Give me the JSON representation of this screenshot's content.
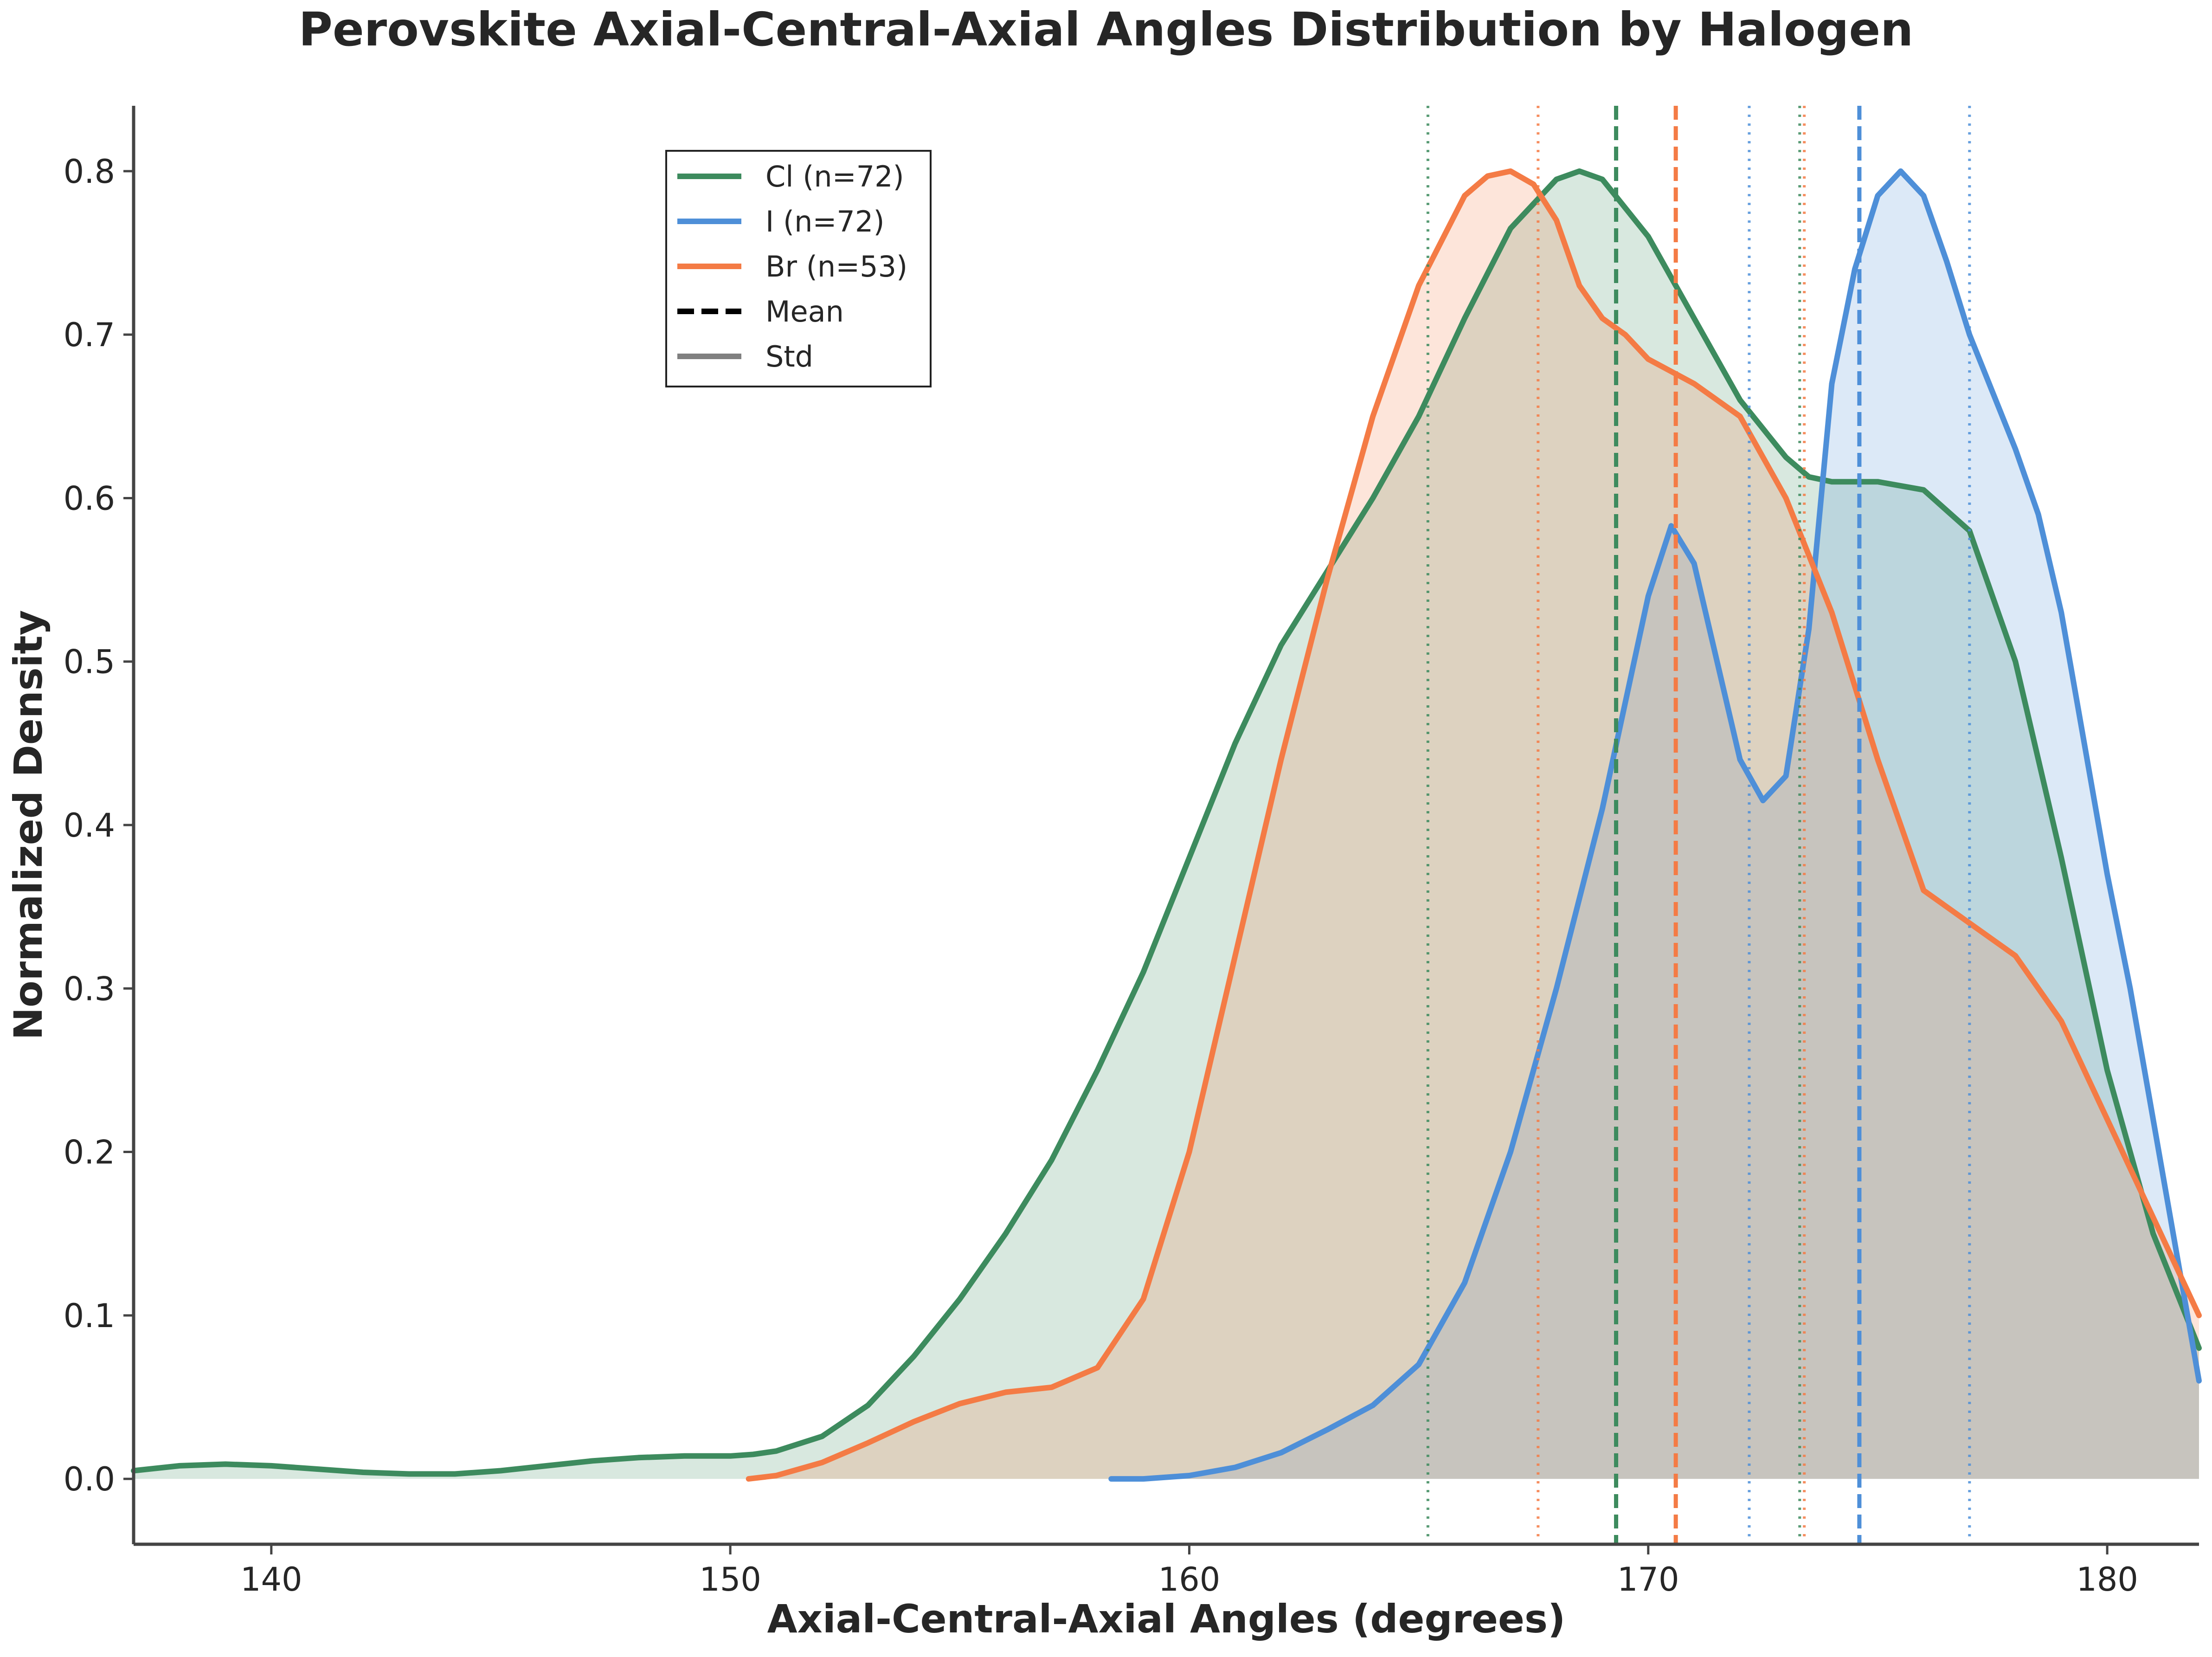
{
  "chart_data": {
    "type": "area",
    "title": "Perovskite Axial-Central-Axial Angles Distribution by Halogen",
    "xlabel": "Axial-Central-Axial Angles (degrees)",
    "ylabel": "Normalized Density",
    "xlim": [
      137,
      182
    ],
    "ylim": [
      -0.04,
      0.84
    ],
    "xticks": [
      140,
      150,
      160,
      170,
      180
    ],
    "xtick_labels": [
      "140",
      "150",
      "160",
      "170",
      "180"
    ],
    "yticks": [
      0.0,
      0.1,
      0.2,
      0.3,
      0.4,
      0.5,
      0.6,
      0.7,
      0.8
    ],
    "ytick_labels": [
      "0.0",
      "0.1",
      "0.2",
      "0.3",
      "0.4",
      "0.5",
      "0.6",
      "0.7",
      "0.8"
    ],
    "grid": false,
    "legend_position": "top-left",
    "legend": [
      "Cl (n=72)",
      "I (n=72)",
      "Br (n=53)",
      "Mean",
      "Std"
    ],
    "series": [
      {
        "name": "Cl (n=72)",
        "color": "#3d8b5e",
        "mean": 169.3,
        "std_lines": [
          165.2,
          173.3
        ],
        "x": [
          137,
          138,
          139,
          140,
          141,
          142,
          143,
          144,
          145,
          146,
          147,
          148,
          149,
          150,
          150.5,
          151,
          152,
          153,
          154,
          155,
          156,
          157,
          158,
          159,
          160,
          161,
          162,
          163,
          164,
          165,
          166,
          167,
          168,
          168.5,
          169,
          170,
          171,
          172,
          173,
          173.5,
          174,
          175,
          176,
          177,
          178,
          179,
          180,
          181,
          182
        ],
        "y": [
          0.005,
          0.008,
          0.009,
          0.008,
          0.006,
          0.004,
          0.003,
          0.003,
          0.005,
          0.008,
          0.011,
          0.013,
          0.014,
          0.014,
          0.015,
          0.017,
          0.026,
          0.045,
          0.075,
          0.11,
          0.15,
          0.195,
          0.25,
          0.31,
          0.38,
          0.45,
          0.51,
          0.555,
          0.6,
          0.65,
          0.71,
          0.765,
          0.795,
          0.8,
          0.795,
          0.76,
          0.71,
          0.66,
          0.625,
          0.613,
          0.61,
          0.61,
          0.605,
          0.58,
          0.5,
          0.38,
          0.25,
          0.15,
          0.08
        ]
      },
      {
        "name": "I (n=72)",
        "color": "#4e8fd8",
        "mean": 174.6,
        "std_lines": [
          172.2,
          177.0
        ],
        "x": [
          158.3,
          159,
          160,
          161,
          162,
          163,
          164,
          165,
          166,
          167,
          168,
          169,
          170,
          170.5,
          171,
          171.5,
          172,
          172.5,
          173,
          173.5,
          174,
          174.5,
          175,
          175.5,
          176,
          176.5,
          177,
          177.5,
          178,
          178.5,
          179,
          179.5,
          180,
          180.5,
          181,
          181.5,
          182
        ],
        "y": [
          0.0,
          0.0,
          0.002,
          0.007,
          0.016,
          0.03,
          0.045,
          0.07,
          0.12,
          0.2,
          0.3,
          0.41,
          0.54,
          0.583,
          0.56,
          0.5,
          0.44,
          0.415,
          0.43,
          0.52,
          0.67,
          0.74,
          0.785,
          0.8,
          0.785,
          0.745,
          0.7,
          0.665,
          0.63,
          0.59,
          0.53,
          0.45,
          0.37,
          0.3,
          0.22,
          0.14,
          0.06
        ]
      },
      {
        "name": "Br (n=53)",
        "color": "#f47b45",
        "mean": 170.6,
        "std_lines": [
          167.6,
          173.4
        ],
        "x": [
          150.4,
          151,
          152,
          153,
          154,
          155,
          156,
          157,
          158,
          159,
          160,
          161,
          162,
          163,
          164,
          165,
          166,
          166.5,
          167,
          167.5,
          168,
          168.5,
          169,
          169.5,
          170,
          171,
          172,
          173,
          174,
          175,
          176,
          177,
          178,
          179,
          180,
          181,
          182
        ],
        "y": [
          0.0,
          0.002,
          0.01,
          0.022,
          0.035,
          0.046,
          0.053,
          0.056,
          0.068,
          0.11,
          0.2,
          0.32,
          0.44,
          0.55,
          0.65,
          0.73,
          0.785,
          0.797,
          0.8,
          0.792,
          0.77,
          0.73,
          0.71,
          0.7,
          0.685,
          0.67,
          0.65,
          0.6,
          0.53,
          0.44,
          0.36,
          0.34,
          0.32,
          0.28,
          0.22,
          0.16,
          0.1
        ]
      }
    ]
  }
}
